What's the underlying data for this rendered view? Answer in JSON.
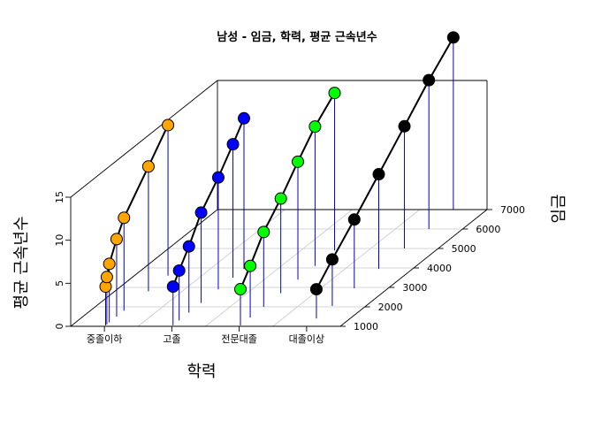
{
  "chart_data": {
    "type": "scatter3d",
    "title": "남성 - 임금, 학력, 평균 근속년수",
    "xlabel": "학력",
    "ylabel": "임금",
    "zlabel": "평균 근속년수",
    "x_categories": [
      "중졸이하",
      "고졸",
      "전문대졸",
      "대졸이상"
    ],
    "y_ticks": [
      1000,
      2000,
      3000,
      4000,
      5000,
      6000,
      7000
    ],
    "z_ticks": [
      0,
      5,
      10,
      15
    ],
    "ylim": [
      1000,
      7000
    ],
    "zlim": [
      0,
      15
    ],
    "grid": true,
    "series": [
      {
        "category": "중졸이하",
        "color": "#FFA500",
        "points": [
          {
            "y": 1050,
            "z": 4.5
          },
          {
            "y": 1100,
            "z": 5.5
          },
          {
            "y": 1200,
            "z": 6.8
          },
          {
            "y": 1500,
            "z": 9.0
          },
          {
            "y": 1800,
            "z": 10.8
          },
          {
            "y": 2800,
            "z": 14.5
          },
          {
            "y": 3600,
            "z": 17.5
          }
        ]
      },
      {
        "category": "고졸",
        "color": "#0000FF",
        "points": [
          {
            "y": 1050,
            "z": 4.5
          },
          {
            "y": 1300,
            "z": 5.8
          },
          {
            "y": 1700,
            "z": 7.7
          },
          {
            "y": 2200,
            "z": 10.5
          },
          {
            "y": 2900,
            "z": 13.0
          },
          {
            "y": 3500,
            "z": 15.5
          },
          {
            "y": 3950,
            "z": 17.5
          }
        ]
      },
      {
        "category": "전문대졸",
        "color": "#00FF00",
        "points": [
          {
            "y": 1050,
            "z": 4.2
          },
          {
            "y": 1450,
            "z": 6.0
          },
          {
            "y": 2000,
            "z": 8.7
          },
          {
            "y": 2700,
            "z": 11.0
          },
          {
            "y": 3400,
            "z": 13.7
          },
          {
            "y": 4100,
            "z": 16.2
          },
          {
            "y": 4900,
            "z": 18.3
          }
        ]
      },
      {
        "category": "대졸이상",
        "color": "#000000",
        "points": [
          {
            "y": 1400,
            "z": 3.4
          },
          {
            "y": 2050,
            "z": 5.4
          },
          {
            "y": 2950,
            "z": 8.0
          },
          {
            "y": 3950,
            "z": 11.0
          },
          {
            "y": 5000,
            "z": 14.2
          },
          {
            "y": 6000,
            "z": 17.3
          },
          {
            "y": 7000,
            "z": 20.0
          }
        ]
      }
    ],
    "colors": {
      "drop_line": "#0000CD",
      "connector": "#000000",
      "grid": "#C8C8C8",
      "box": "#000000"
    }
  }
}
